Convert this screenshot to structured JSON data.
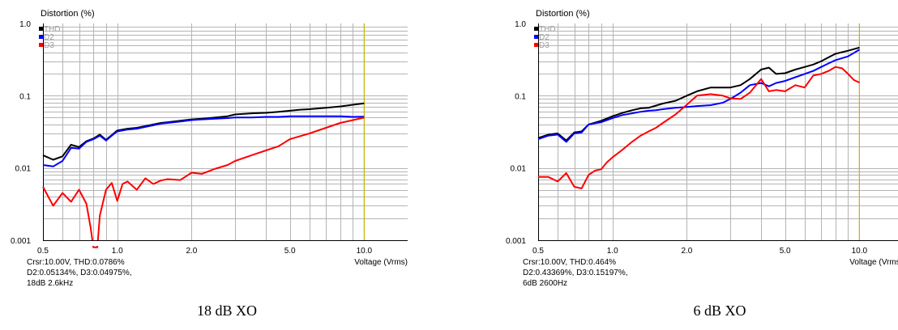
{
  "chart_data": [
    {
      "type": "line",
      "title": "Distortion (%)",
      "xlabel": "Voltage (Vrms)",
      "ylabel": "Distortion (%)",
      "xscale": "log",
      "yscale": "log",
      "xlim": [
        0.5,
        15
      ],
      "ylim": [
        0.001,
        1.0
      ],
      "x_ticks": [
        0.5,
        1.0,
        2.0,
        5.0,
        10.0
      ],
      "x_tick_labels": [
        "0.5",
        "1.0",
        "2.0",
        "5.0",
        "10.0"
      ],
      "y_ticks": [
        1.0,
        0.1,
        0.01,
        0.001
      ],
      "y_tick_labels": [
        "1.0",
        "0.1",
        "0.01",
        "0.001"
      ],
      "grid": true,
      "legend_position": "top-left",
      "cursor_x": 10.0,
      "readout": [
        "Crsr:10.00V, THD:0.0786%",
        "D2:0.05134%, D3:0.04975%,",
        "18dB 2.6kHz"
      ],
      "caption": "18 dB XO",
      "series": [
        {
          "name": "THD",
          "color": "#000000",
          "x": [
            0.5,
            0.55,
            0.6,
            0.65,
            0.7,
            0.75,
            0.8,
            0.85,
            0.9,
            0.95,
            1.0,
            1.1,
            1.2,
            1.3,
            1.4,
            1.5,
            1.6,
            1.8,
            2.0,
            2.2,
            2.5,
            2.8,
            3.0,
            3.5,
            4.0,
            4.5,
            5.0,
            5.5,
            6.0,
            7.0,
            8.0,
            9.0,
            10.0
          ],
          "values": [
            0.015,
            0.013,
            0.0145,
            0.021,
            0.0195,
            0.0235,
            0.0255,
            0.029,
            0.0245,
            0.0285,
            0.033,
            0.035,
            0.036,
            0.038,
            0.04,
            0.042,
            0.043,
            0.045,
            0.047,
            0.048,
            0.05,
            0.052,
            0.055,
            0.057,
            0.058,
            0.06,
            0.062,
            0.064,
            0.065,
            0.068,
            0.071,
            0.075,
            0.0786
          ]
        },
        {
          "name": "D2",
          "color": "#0000ff",
          "x": [
            0.5,
            0.55,
            0.6,
            0.65,
            0.7,
            0.75,
            0.8,
            0.85,
            0.9,
            0.95,
            1.0,
            1.1,
            1.2,
            1.3,
            1.4,
            1.5,
            1.6,
            1.8,
            2.0,
            2.2,
            2.5,
            2.8,
            3.0,
            3.5,
            4.0,
            4.5,
            5.0,
            5.5,
            6.0,
            7.0,
            8.0,
            9.0,
            10.0
          ],
          "values": [
            0.011,
            0.0105,
            0.0125,
            0.019,
            0.0185,
            0.023,
            0.025,
            0.028,
            0.024,
            0.028,
            0.032,
            0.034,
            0.035,
            0.037,
            0.039,
            0.041,
            0.042,
            0.044,
            0.046,
            0.047,
            0.048,
            0.049,
            0.05,
            0.05,
            0.051,
            0.051,
            0.052,
            0.052,
            0.052,
            0.052,
            0.052,
            0.051,
            0.0513
          ]
        },
        {
          "name": "D3",
          "color": "#ff0000",
          "x": [
            0.5,
            0.55,
            0.6,
            0.65,
            0.7,
            0.75,
            0.78,
            0.8,
            0.83,
            0.85,
            0.9,
            0.95,
            1.0,
            1.05,
            1.1,
            1.2,
            1.3,
            1.4,
            1.5,
            1.6,
            1.8,
            2.0,
            2.2,
            2.5,
            2.8,
            3.0,
            3.5,
            4.0,
            4.5,
            5.0,
            6.0,
            7.0,
            8.0,
            9.0,
            10.0
          ],
          "values": [
            0.0055,
            0.003,
            0.0045,
            0.0034,
            0.005,
            0.0032,
            0.0015,
            0.0008,
            0.0008,
            0.0022,
            0.005,
            0.0062,
            0.0035,
            0.006,
            0.0065,
            0.005,
            0.0072,
            0.006,
            0.0067,
            0.007,
            0.0068,
            0.0086,
            0.0083,
            0.0098,
            0.011,
            0.0125,
            0.015,
            0.0175,
            0.02,
            0.025,
            0.03,
            0.036,
            0.042,
            0.046,
            0.0498
          ]
        }
      ]
    },
    {
      "type": "line",
      "title": "Distortion (%)",
      "xlabel": "Voltage (Vrms)",
      "ylabel": "Distortion (%)",
      "xscale": "log",
      "yscale": "log",
      "xlim": [
        0.5,
        15
      ],
      "ylim": [
        0.001,
        1.0
      ],
      "x_ticks": [
        0.5,
        1.0,
        2.0,
        5.0,
        10.0
      ],
      "x_tick_labels": [
        "0.5",
        "1.0",
        "2.0",
        "5.0",
        "10.0"
      ],
      "y_ticks": [
        1.0,
        0.1,
        0.01,
        0.001
      ],
      "y_tick_labels": [
        "1.0",
        "0.1",
        "0.01",
        "0.001"
      ],
      "grid": true,
      "legend_position": "top-left",
      "cursor_x": 10.0,
      "readout": [
        "Crsr:10.00V, THD:0.464%",
        "D2:0.43369%, D3:0.15197%,",
        "6dB 2600Hz"
      ],
      "caption": "6 dB XO",
      "series": [
        {
          "name": "THD",
          "color": "#000000",
          "x": [
            0.5,
            0.55,
            0.6,
            0.65,
            0.7,
            0.75,
            0.8,
            0.9,
            1.0,
            1.1,
            1.2,
            1.3,
            1.4,
            1.5,
            1.6,
            1.8,
            2.0,
            2.2,
            2.5,
            2.8,
            3.0,
            3.3,
            3.6,
            4.0,
            4.3,
            4.6,
            5.0,
            5.5,
            6.0,
            6.5,
            7.0,
            7.5,
            8.0,
            9.0,
            10.0
          ],
          "values": [
            0.026,
            0.029,
            0.03,
            0.024,
            0.031,
            0.032,
            0.04,
            0.045,
            0.052,
            0.058,
            0.063,
            0.067,
            0.068,
            0.073,
            0.078,
            0.085,
            0.1,
            0.115,
            0.13,
            0.13,
            0.13,
            0.14,
            0.17,
            0.23,
            0.245,
            0.2,
            0.205,
            0.23,
            0.25,
            0.27,
            0.3,
            0.34,
            0.38,
            0.42,
            0.464
          ]
        },
        {
          "name": "D2",
          "color": "#0000ff",
          "x": [
            0.5,
            0.55,
            0.6,
            0.65,
            0.7,
            0.75,
            0.8,
            0.9,
            1.0,
            1.1,
            1.2,
            1.3,
            1.4,
            1.5,
            1.6,
            1.8,
            2.0,
            2.2,
            2.5,
            2.8,
            3.0,
            3.3,
            3.6,
            4.0,
            4.3,
            4.6,
            5.0,
            5.5,
            6.0,
            6.5,
            7.0,
            7.5,
            8.0,
            9.0,
            10.0
          ],
          "values": [
            0.025,
            0.028,
            0.029,
            0.023,
            0.03,
            0.031,
            0.04,
            0.043,
            0.049,
            0.054,
            0.057,
            0.06,
            0.062,
            0.063,
            0.065,
            0.068,
            0.07,
            0.072,
            0.074,
            0.08,
            0.09,
            0.11,
            0.14,
            0.15,
            0.135,
            0.15,
            0.16,
            0.18,
            0.2,
            0.22,
            0.25,
            0.28,
            0.31,
            0.35,
            0.434
          ]
        },
        {
          "name": "D3",
          "color": "#ff0000",
          "x": [
            0.5,
            0.55,
            0.6,
            0.65,
            0.7,
            0.75,
            0.8,
            0.85,
            0.9,
            0.95,
            1.0,
            1.1,
            1.2,
            1.3,
            1.4,
            1.5,
            1.6,
            1.8,
            2.0,
            2.2,
            2.5,
            2.8,
            3.0,
            3.3,
            3.6,
            4.0,
            4.3,
            4.6,
            5.0,
            5.5,
            6.0,
            6.5,
            7.0,
            7.5,
            8.0,
            8.5,
            9.0,
            9.5,
            10.0
          ],
          "values": [
            0.0075,
            0.0075,
            0.0065,
            0.0085,
            0.0055,
            0.0052,
            0.008,
            0.0092,
            0.0096,
            0.012,
            0.014,
            0.018,
            0.023,
            0.028,
            0.032,
            0.036,
            0.042,
            0.055,
            0.075,
            0.1,
            0.105,
            0.1,
            0.092,
            0.09,
            0.11,
            0.17,
            0.115,
            0.12,
            0.115,
            0.14,
            0.13,
            0.19,
            0.2,
            0.22,
            0.25,
            0.24,
            0.2,
            0.165,
            0.152
          ]
        }
      ]
    }
  ]
}
